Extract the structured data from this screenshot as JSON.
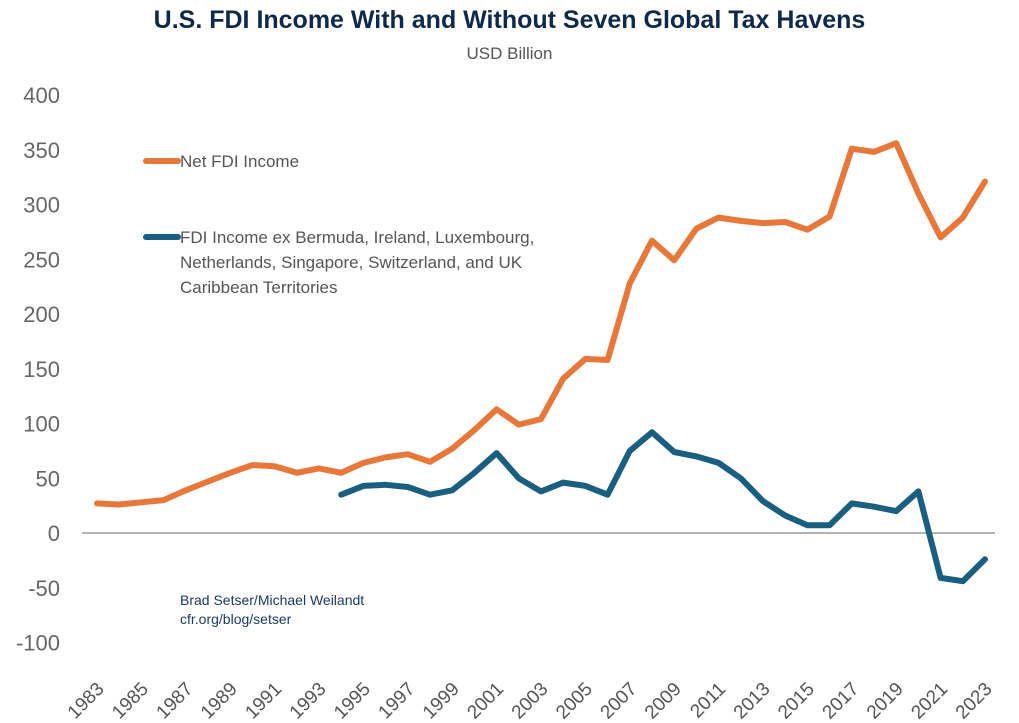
{
  "chart_data": {
    "type": "line",
    "title": "U.S. FDI Income With and Without Seven Global Tax Havens",
    "subtitle": "USD Billion",
    "xlabel": "",
    "ylabel": "",
    "ylim": [
      -100,
      400
    ],
    "yticks": [
      400,
      350,
      300,
      250,
      200,
      150,
      100,
      50,
      0,
      -50,
      -100
    ],
    "xticks": [
      1983,
      1985,
      1987,
      1989,
      1991,
      1993,
      1995,
      1997,
      1999,
      2001,
      2003,
      2005,
      2007,
      2009,
      2011,
      2013,
      2015,
      2017,
      2019,
      2021,
      2023
    ],
    "x": [
      1983,
      1984,
      1985,
      1986,
      1987,
      1988,
      1989,
      1990,
      1991,
      1992,
      1993,
      1994,
      1995,
      1996,
      1997,
      1998,
      1999,
      2000,
      2001,
      2002,
      2003,
      2004,
      2005,
      2006,
      2007,
      2008,
      2009,
      2010,
      2011,
      2012,
      2013,
      2014,
      2015,
      2016,
      2017,
      2018,
      2019,
      2020,
      2021,
      2022,
      2023
    ],
    "legend_position": "top-left",
    "series": [
      {
        "name": "Net FDI Income",
        "color": "#e8773a",
        "values": [
          27,
          26,
          28,
          30,
          39,
          47,
          55,
          62,
          61,
          55,
          59,
          55,
          64,
          69,
          72,
          65,
          77,
          94,
          113,
          99,
          104,
          141,
          159,
          158,
          228,
          267,
          249,
          278,
          288,
          285,
          283,
          284,
          277,
          289,
          351,
          348,
          356,
          310,
          270,
          288,
          321
        ]
      },
      {
        "name": "FDI Income ex Bermuda, Ireland, Luxembourg, Netherlands, Singapore, Switzerland, and UK Caribbean Territories",
        "legend_lines": [
          "FDI Income ex Bermuda, Ireland, Luxembourg,",
          "Netherlands, Singapore, Switzerland, and UK",
          "Caribbean Territories"
        ],
        "color": "#1a5f7f",
        "values": [
          null,
          null,
          null,
          null,
          null,
          null,
          null,
          null,
          null,
          null,
          null,
          35,
          43,
          44,
          42,
          35,
          39,
          55,
          73,
          50,
          38,
          46,
          43,
          35,
          75,
          92,
          74,
          70,
          64,
          50,
          29,
          16,
          7,
          7,
          27,
          24,
          20,
          38,
          -41,
          -44,
          -24
        ]
      }
    ],
    "annotations": [
      "Brad Setser/Michael Weilandt",
      "cfr.org/blog/setser"
    ]
  }
}
